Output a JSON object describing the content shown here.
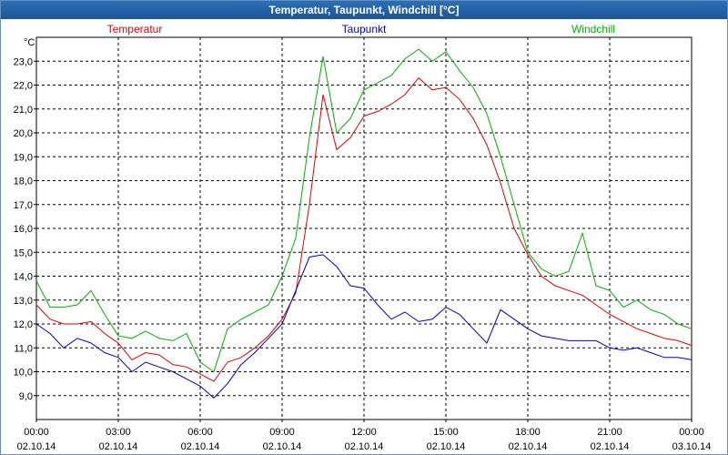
{
  "window": {
    "title": "Temperatur, Taupunkt, Windchill [°C]"
  },
  "chart_data": {
    "type": "line",
    "title": "Temperatur, Taupunkt, Windchill [°C]",
    "ylabel": "°C",
    "ylim": [
      8.0,
      24.0
    ],
    "yticks": [
      9.0,
      10.0,
      11.0,
      12.0,
      13.0,
      14.0,
      15.0,
      16.0,
      17.0,
      18.0,
      19.0,
      20.0,
      21.0,
      22.0,
      23.0
    ],
    "ytick_labels": [
      "9,0",
      "10,0",
      "11,0",
      "12,0",
      "13,0",
      "14,0",
      "15,0",
      "16,0",
      "17,0",
      "18,0",
      "19,0",
      "20,0",
      "21,0",
      "22,0",
      "23,0"
    ],
    "xlim": [
      0,
      24
    ],
    "xticks": [
      0,
      3,
      6,
      9,
      12,
      15,
      18,
      21,
      24
    ],
    "xtick_labels": [
      [
        "00:00",
        "02.10.14"
      ],
      [
        "03:00",
        "02.10.14"
      ],
      [
        "06:00",
        "02.10.14"
      ],
      [
        "09:00",
        "02.10.14"
      ],
      [
        "12:00",
        "02.10.14"
      ],
      [
        "15:00",
        "02.10.14"
      ],
      [
        "18:00",
        "02.10.14"
      ],
      [
        "21:00",
        "02.10.14"
      ],
      [
        "00:00",
        "03.10.14"
      ]
    ],
    "grid": true,
    "legend": "top",
    "series": [
      {
        "name": "Temperatur",
        "color": "#e00000",
        "x": [
          0,
          0.5,
          1,
          1.5,
          2,
          2.5,
          3,
          3.5,
          4,
          4.5,
          5,
          5.5,
          6,
          6.5,
          7,
          7.5,
          8,
          8.5,
          9,
          9.5,
          10,
          10.5,
          11,
          11.5,
          12,
          12.5,
          13,
          13.5,
          14,
          14.5,
          15,
          15.5,
          16,
          16.5,
          17,
          17.5,
          18,
          18.5,
          19,
          19.5,
          20,
          20.5,
          21,
          21.5,
          22,
          22.5,
          23,
          23.5,
          24
        ],
        "y": [
          12.8,
          12.2,
          12.0,
          12.0,
          12.1,
          11.6,
          11.2,
          10.5,
          10.8,
          10.7,
          10.3,
          10.2,
          9.9,
          9.6,
          10.4,
          10.6,
          11.0,
          11.5,
          12.2,
          13.3,
          17.0,
          21.6,
          19.3,
          19.8,
          20.7,
          20.9,
          21.2,
          21.6,
          22.3,
          21.8,
          21.9,
          21.4,
          20.6,
          19.5,
          17.9,
          16.0,
          14.9,
          14.0,
          13.6,
          13.4,
          13.2,
          12.8,
          12.4,
          12.1,
          11.8,
          11.6,
          11.4,
          11.3,
          11.1
        ]
      },
      {
        "name": "Taupunkt",
        "color": "#0000c0",
        "x": [
          0,
          0.5,
          1,
          1.5,
          2,
          2.5,
          3,
          3.5,
          4,
          4.5,
          5,
          5.5,
          6,
          6.5,
          7,
          7.5,
          8,
          8.5,
          9,
          9.5,
          10,
          10.5,
          11,
          11.5,
          12,
          12.5,
          13,
          13.5,
          14,
          14.5,
          15,
          15.5,
          16,
          16.5,
          17,
          17.5,
          18,
          18.5,
          19,
          19.5,
          20,
          20.5,
          21,
          21.5,
          22,
          22.5,
          23,
          23.5,
          24
        ],
        "y": [
          12.0,
          11.6,
          11.0,
          11.4,
          11.2,
          10.8,
          10.6,
          10.0,
          10.4,
          10.2,
          10.0,
          9.7,
          9.4,
          8.9,
          9.5,
          10.3,
          10.8,
          11.4,
          12.0,
          13.4,
          14.8,
          14.9,
          14.4,
          13.6,
          13.5,
          12.8,
          12.2,
          12.5,
          12.1,
          12.2,
          12.7,
          12.4,
          11.8,
          11.2,
          12.6,
          12.2,
          11.8,
          11.5,
          11.4,
          11.3,
          11.3,
          11.3,
          11.0,
          10.9,
          11.0,
          10.8,
          10.6,
          10.6,
          10.5
        ]
      },
      {
        "name": "Windchill",
        "color": "#00b000",
        "x": [
          0,
          0.5,
          1,
          1.5,
          2,
          2.5,
          3,
          3.5,
          4,
          4.5,
          5,
          5.5,
          6,
          6.5,
          7,
          7.5,
          8,
          8.5,
          9,
          9.5,
          10,
          10.5,
          11,
          11.5,
          12,
          12.5,
          13,
          13.5,
          14,
          14.5,
          15,
          15.5,
          16,
          16.5,
          17,
          17.5,
          18,
          18.5,
          19,
          19.5,
          20,
          20.5,
          21,
          21.5,
          22,
          22.5,
          23,
          23.5,
          24
        ],
        "y": [
          13.8,
          12.7,
          12.7,
          12.8,
          13.4,
          12.4,
          11.5,
          11.4,
          11.7,
          11.4,
          11.3,
          11.6,
          10.4,
          10.0,
          11.8,
          12.2,
          12.5,
          12.8,
          14.0,
          15.6,
          19.8,
          23.2,
          20.0,
          20.6,
          21.8,
          22.1,
          22.4,
          23.1,
          23.5,
          23.0,
          23.4,
          22.6,
          21.9,
          20.8,
          19.0,
          17.0,
          15.0,
          14.3,
          14.0,
          14.2,
          15.8,
          13.6,
          13.4,
          12.7,
          13.0,
          12.6,
          12.4,
          12.0,
          11.8
        ]
      }
    ]
  }
}
